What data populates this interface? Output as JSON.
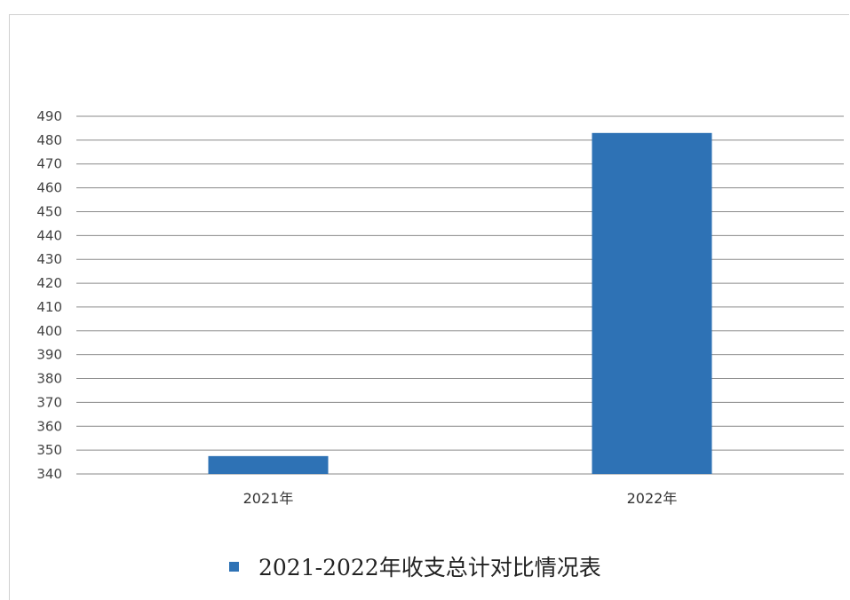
{
  "chart_data": {
    "type": "bar",
    "categories": [
      "2021年",
      "2022年"
    ],
    "series": [
      {
        "name": "2021-2022年收支总计对比情况表",
        "values": [
          347.5,
          483
        ]
      }
    ],
    "ylim": [
      340,
      490
    ],
    "ytick_step": 10,
    "yticks": [
      "340",
      "350",
      "360",
      "370",
      "380",
      "390",
      "400",
      "410",
      "420",
      "430",
      "440",
      "450",
      "460",
      "470",
      "480",
      "490"
    ],
    "grid": true,
    "legend_position": "bottom",
    "colors": {
      "bar": "#2E72B5",
      "grid": "#8a8a8a",
      "text": "#444444"
    }
  }
}
